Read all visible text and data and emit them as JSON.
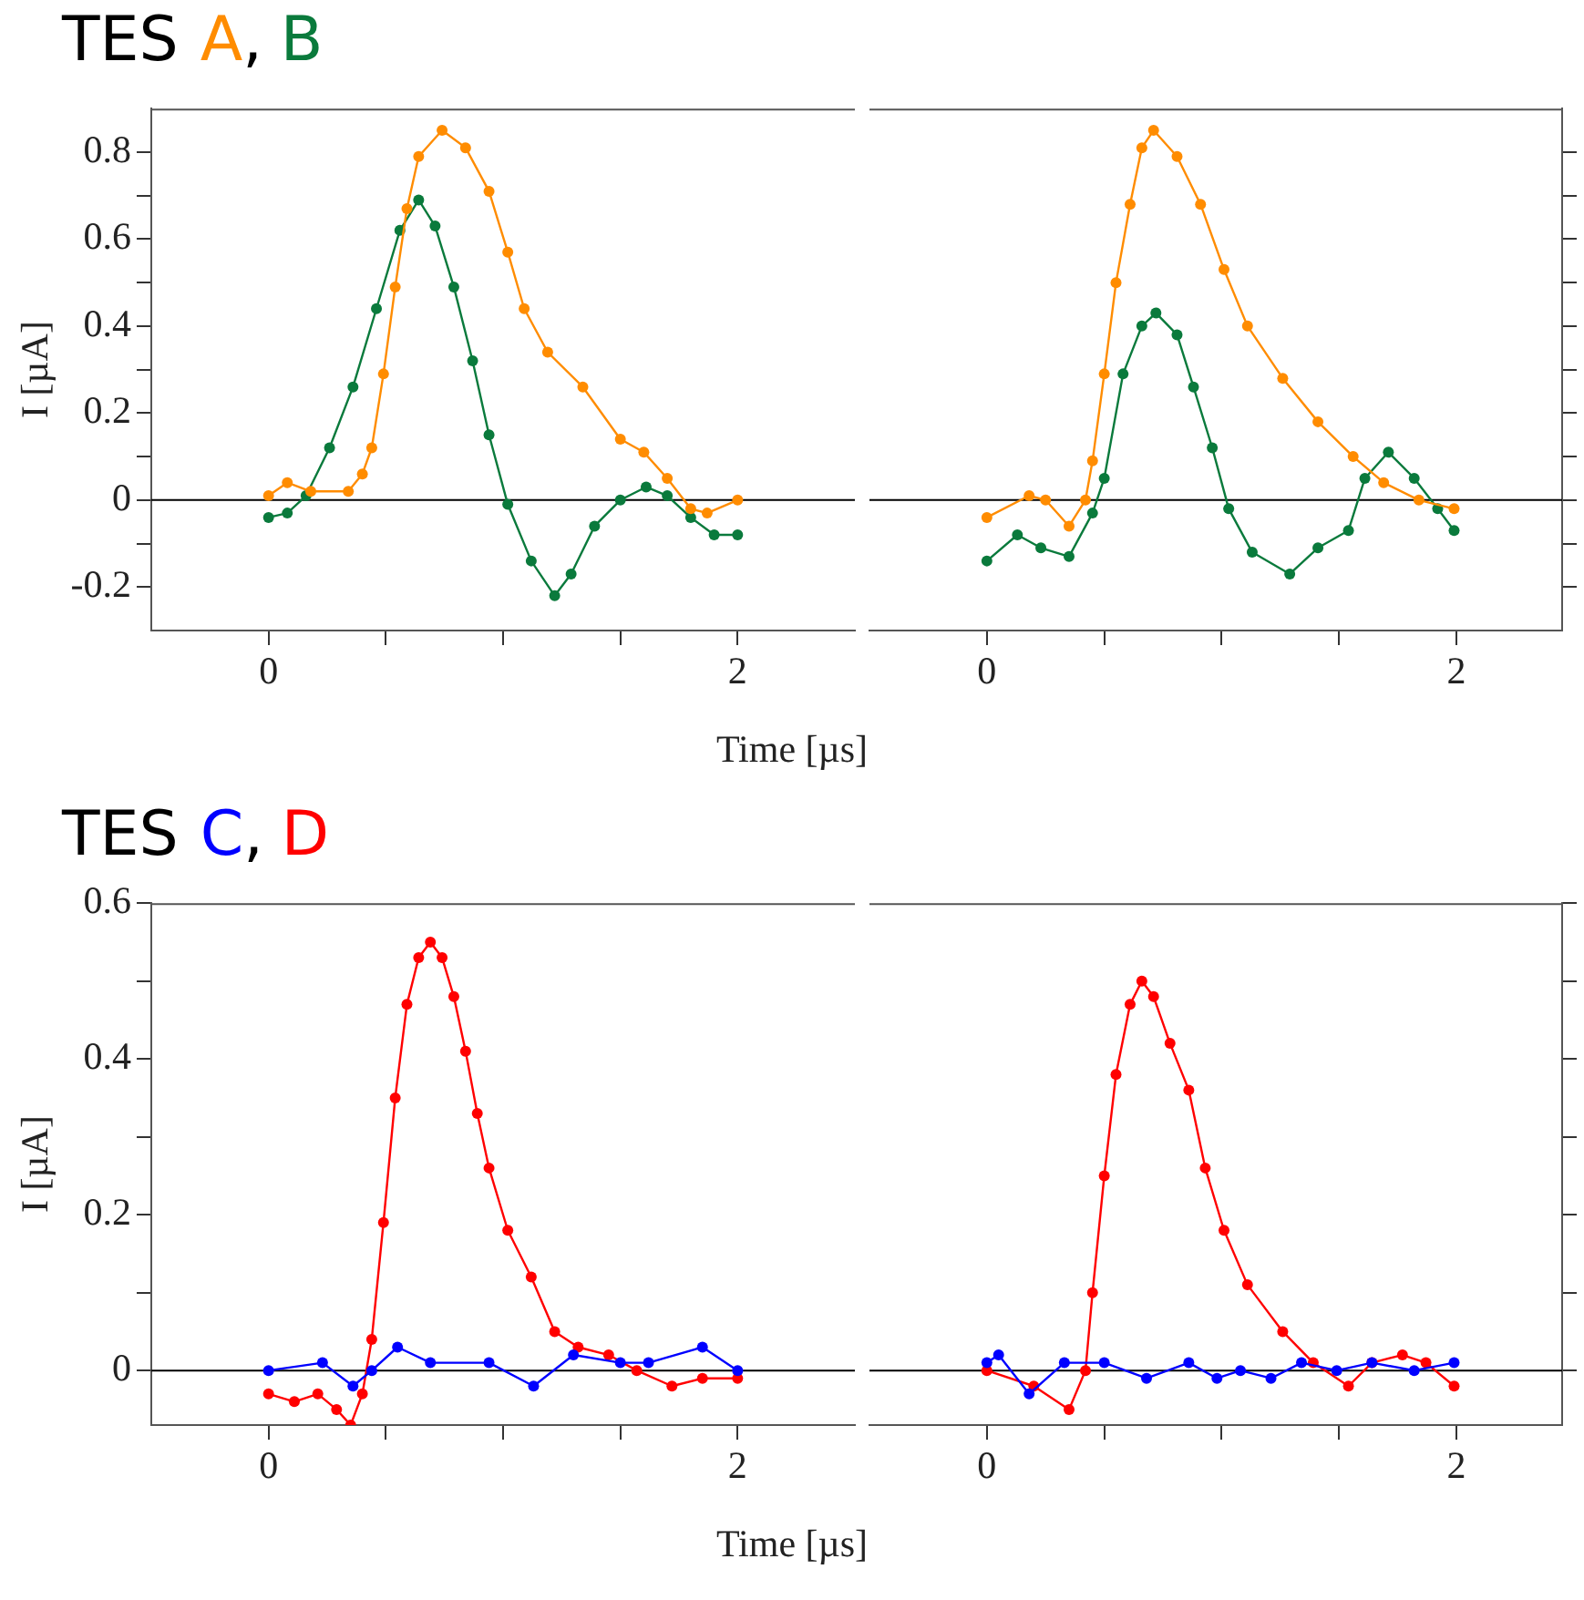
{
  "chart_data": [
    {
      "type": "line",
      "title": "TES",
      "annotations": [
        ","
      ],
      "xlabel": "Time [µs]",
      "ylabel": "I [µA]",
      "legend": "top left",
      "marker": "circle",
      "grid": false,
      "xlim": [
        -0.5,
        2.5
      ],
      "xticks": [
        {
          "value": 0,
          "label": "0"
        },
        {
          "value": 0.5,
          "label": null
        },
        {
          "value": 1,
          "label": null
        },
        {
          "value": 1.5,
          "label": null
        },
        {
          "value": 2,
          "label": "2"
        }
      ],
      "ylim": [
        -0.3,
        0.9
      ],
      "yticks": [
        -0.2,
        {
          "value": -0.1,
          "label": null
        },
        0,
        {
          "value": 0.1,
          "label": null
        },
        0.2,
        {
          "value": 0.3,
          "label": null
        },
        0.4,
        {
          "value": 0.5,
          "label": null
        },
        0.6,
        {
          "value": 0.7,
          "label": null
        },
        0.8
      ],
      "ref_lines": [
        {
          "axis": "y",
          "value": 0,
          "color": "#000000"
        }
      ],
      "series": [
        {
          "name": "A",
          "color": "#ff8c00",
          "x": [
            0,
            0.08,
            0.18,
            0.34,
            0.4,
            0.44,
            0.49,
            0.54,
            0.59,
            0.64,
            0.74,
            0.84,
            0.94,
            1.02,
            1.09,
            1.19,
            1.34,
            1.5,
            1.6,
            1.7,
            1.8,
            1.87,
            2.0
          ],
          "values": [
            0.01,
            0.04,
            0.02,
            0.02,
            0.06,
            0.12,
            0.29,
            0.49,
            0.67,
            0.79,
            0.85,
            0.81,
            0.71,
            0.57,
            0.44,
            0.34,
            0.26,
            0.14,
            0.11,
            0.05,
            -0.02,
            -0.03,
            0.0
          ]
        },
        {
          "name": "B",
          "color": "#0a7a3c",
          "x": [
            0,
            0.08,
            0.16,
            0.26,
            0.36,
            0.46,
            0.56,
            0.64,
            0.71,
            0.79,
            0.87,
            0.94,
            1.02,
            1.12,
            1.22,
            1.29,
            1.39,
            1.5,
            1.61,
            1.7,
            1.8,
            1.9,
            2.0
          ],
          "values": [
            -0.04,
            -0.03,
            0.01,
            0.12,
            0.26,
            0.44,
            0.62,
            0.69,
            0.63,
            0.49,
            0.32,
            0.15,
            -0.01,
            -0.14,
            -0.22,
            -0.17,
            -0.06,
            0.0,
            0.03,
            0.01,
            -0.04,
            -0.08,
            -0.08
          ]
        }
      ]
    },
    {
      "type": "line",
      "marker": "circle",
      "grid": false,
      "tick_labels": "x",
      "xlim": [
        -0.5,
        2.45
      ],
      "xticks": [
        {
          "value": 0,
          "label": "0"
        },
        {
          "value": 0.5,
          "label": null
        },
        {
          "value": 1,
          "label": null
        },
        {
          "value": 1.5,
          "label": null
        },
        {
          "value": 2,
          "label": "2"
        }
      ],
      "ylim": [
        -0.3,
        0.9
      ],
      "yticks": [
        {
          "value": -0.2,
          "label": null
        },
        {
          "value": -0.1,
          "label": null
        },
        {
          "value": 0,
          "label": null
        },
        {
          "value": 0.1,
          "label": null
        },
        {
          "value": 0.2,
          "label": null
        },
        {
          "value": 0.3,
          "label": null
        },
        {
          "value": 0.4,
          "label": null
        },
        {
          "value": 0.5,
          "label": null
        },
        {
          "value": 0.6,
          "label": null
        },
        {
          "value": 0.7,
          "label": null
        },
        {
          "value": 0.8,
          "label": null
        }
      ],
      "ref_lines": [
        {
          "axis": "y",
          "value": 0,
          "color": "#000000"
        }
      ],
      "series": [
        {
          "color": "#ff8c00",
          "x": [
            0,
            0.18,
            0.25,
            0.35,
            0.42,
            0.45,
            0.5,
            0.55,
            0.61,
            0.66,
            0.71,
            0.81,
            0.91,
            1.01,
            1.11,
            1.26,
            1.41,
            1.56,
            1.69,
            1.84,
            1.99
          ],
          "values": [
            -0.04,
            0.01,
            0.0,
            -0.06,
            0.0,
            0.09,
            0.29,
            0.5,
            0.68,
            0.81,
            0.85,
            0.79,
            0.68,
            0.53,
            0.4,
            0.28,
            0.18,
            0.1,
            0.04,
            0.0,
            -0.02
          ]
        },
        {
          "color": "#0a7a3c",
          "x": [
            0,
            0.13,
            0.23,
            0.35,
            0.45,
            0.5,
            0.58,
            0.66,
            0.72,
            0.81,
            0.88,
            0.96,
            1.03,
            1.13,
            1.29,
            1.41,
            1.54,
            1.61,
            1.71,
            1.82,
            1.92,
            1.99
          ],
          "values": [
            -0.14,
            -0.08,
            -0.11,
            -0.13,
            -0.03,
            0.05,
            0.29,
            0.4,
            0.43,
            0.38,
            0.26,
            0.12,
            -0.02,
            -0.12,
            -0.17,
            -0.11,
            -0.07,
            0.05,
            0.11,
            0.05,
            -0.02,
            -0.07
          ]
        }
      ]
    },
    {
      "type": "line",
      "title": "TES",
      "annotations": [
        ","
      ],
      "xlabel": "Time [µs]",
      "ylabel": "I [µA]",
      "legend": "top left",
      "marker": "circle",
      "grid": false,
      "xlim": [
        -0.5,
        2.5
      ],
      "xticks": [
        {
          "value": 0,
          "label": "0"
        },
        {
          "value": 0.5,
          "label": null
        },
        {
          "value": 1,
          "label": null
        },
        {
          "value": 1.5,
          "label": null
        },
        {
          "value": 2,
          "label": "2"
        }
      ],
      "ylim": [
        -0.07,
        0.6
      ],
      "yticks": [
        0,
        {
          "value": 0.1,
          "label": null
        },
        0.2,
        {
          "value": 0.3,
          "label": null
        },
        0.4,
        {
          "value": 0.5,
          "label": null
        },
        0.6
      ],
      "ref_lines": [
        {
          "axis": "y",
          "value": 0,
          "color": "#000000"
        }
      ],
      "series": [
        {
          "name": "C",
          "color": "#0000ff",
          "x": [
            0,
            0.23,
            0.36,
            0.44,
            0.55,
            0.69,
            0.94,
            1.13,
            1.3,
            1.5,
            1.62,
            1.85,
            2.0
          ],
          "values": [
            0.0,
            0.01,
            -0.02,
            0.0,
            0.03,
            0.01,
            0.01,
            -0.02,
            0.02,
            0.01,
            0.01,
            0.03,
            0.0
          ]
        },
        {
          "name": "D",
          "color": "#ff0000",
          "x": [
            0,
            0.11,
            0.21,
            0.29,
            0.35,
            0.4,
            0.44,
            0.49,
            0.54,
            0.59,
            0.64,
            0.69,
            0.74,
            0.79,
            0.84,
            0.89,
            0.94,
            1.02,
            1.12,
            1.22,
            1.32,
            1.45,
            1.57,
            1.72,
            1.85,
            2.0
          ],
          "values": [
            -0.03,
            -0.04,
            -0.03,
            -0.05,
            -0.07,
            -0.03,
            0.04,
            0.19,
            0.35,
            0.47,
            0.53,
            0.55,
            0.53,
            0.48,
            0.41,
            0.33,
            0.26,
            0.18,
            0.12,
            0.05,
            0.03,
            0.02,
            0.0,
            -0.02,
            -0.01,
            -0.01
          ]
        }
      ]
    },
    {
      "type": "line",
      "marker": "circle",
      "grid": false,
      "tick_labels": "x",
      "xlim": [
        -0.5,
        2.45
      ],
      "xticks": [
        {
          "value": 0,
          "label": "0"
        },
        {
          "value": 0.5,
          "label": null
        },
        {
          "value": 1,
          "label": null
        },
        {
          "value": 1.5,
          "label": null
        },
        {
          "value": 2,
          "label": "2"
        }
      ],
      "ylim": [
        -0.07,
        0.6
      ],
      "yticks": [
        {
          "value": 0,
          "label": null
        },
        {
          "value": 0.1,
          "label": null
        },
        {
          "value": 0.2,
          "label": null
        },
        {
          "value": 0.3,
          "label": null
        },
        {
          "value": 0.4,
          "label": null
        },
        {
          "value": 0.5,
          "label": null
        },
        {
          "value": 0.6,
          "label": null
        }
      ],
      "ref_lines": [
        {
          "axis": "y",
          "value": 0,
          "color": "#000000"
        }
      ],
      "series": [
        {
          "color": "#0000ff",
          "x": [
            0,
            0.05,
            0.18,
            0.33,
            0.5,
            0.68,
            0.86,
            0.98,
            1.08,
            1.21,
            1.34,
            1.49,
            1.64,
            1.82,
            1.99
          ],
          "values": [
            0.01,
            0.02,
            -0.03,
            0.01,
            0.01,
            -0.01,
            0.01,
            -0.01,
            0.0,
            -0.01,
            0.01,
            0.0,
            0.01,
            0.0,
            0.01
          ]
        },
        {
          "color": "#ff0000",
          "x": [
            0,
            0.2,
            0.35,
            0.42,
            0.45,
            0.5,
            0.55,
            0.61,
            0.66,
            0.71,
            0.78,
            0.86,
            0.93,
            1.01,
            1.11,
            1.26,
            1.39,
            1.54,
            1.64,
            1.77,
            1.87,
            1.99
          ],
          "values": [
            0.0,
            -0.02,
            -0.05,
            0.0,
            0.1,
            0.25,
            0.38,
            0.47,
            0.5,
            0.48,
            0.42,
            0.36,
            0.26,
            0.18,
            0.11,
            0.05,
            0.01,
            -0.02,
            0.01,
            0.02,
            0.01,
            -0.02
          ]
        }
      ]
    }
  ]
}
